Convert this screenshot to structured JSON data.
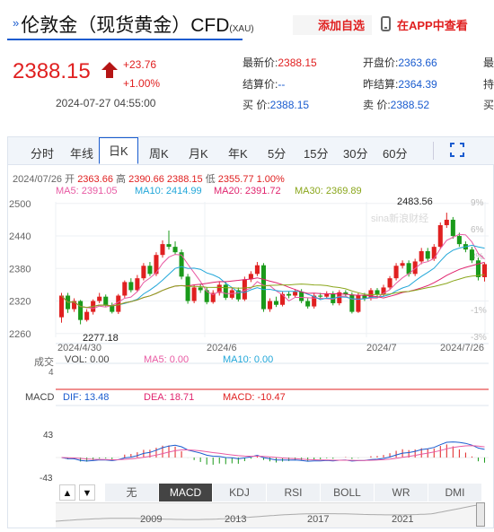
{
  "header": {
    "chevron": "»",
    "title": "伦敦金（现货黄金）CFD",
    "subtitle": "(XAU)",
    "add_watch": "添加自选",
    "app_view": "在APP中查看"
  },
  "quote": {
    "price": "2388.15",
    "change": "+23.76",
    "change_pct": "+1.00%",
    "time": "2024-07-27 04:55:00",
    "rows": [
      [
        {
          "label": "最新价:",
          "value": "2388.15",
          "color": "red"
        },
        {
          "label": "开盘价:",
          "value": "2363.66",
          "color": "blue"
        },
        {
          "label": "最",
          "value": "",
          "color": "blue"
        }
      ],
      [
        {
          "label": "结算价:",
          "value": "--",
          "color": "blue"
        },
        {
          "label": "昨结算:",
          "value": "2364.39",
          "color": "blue"
        },
        {
          "label": "持",
          "value": "",
          "color": "blue"
        }
      ],
      [
        {
          "label": "买  价:",
          "value": "2388.15",
          "color": "blue"
        },
        {
          "label": "卖  价:",
          "value": "2388.52",
          "color": "blue"
        },
        {
          "label": "买",
          "value": "",
          "color": "blue"
        }
      ]
    ]
  },
  "tabs": [
    "分时",
    "年线",
    "日K",
    "周K",
    "月K",
    "年K",
    "5分",
    "15分",
    "30分",
    "60分"
  ],
  "active_tab": "日K",
  "ohlc": {
    "date": "2024/07/26",
    "open_label": "开",
    "open": "2363.66",
    "high_label": "高",
    "high": "2390.66",
    "close": "2388.15",
    "low_label": "低",
    "low": "2355.77",
    "pct": "1.00%"
  },
  "ma_legend": [
    {
      "text": "MA5: 2391.05",
      "color": "#e85aa3"
    },
    {
      "text": "MA10: 2414.99",
      "color": "#22a7d9"
    },
    {
      "text": "MA20: 2391.72",
      "color": "#e0246e"
    },
    {
      "text": "MA30: 2369.89",
      "color": "#8aa61b"
    }
  ],
  "chart_data": {
    "type": "candlestick",
    "title": "",
    "y_ticks": [
      "2500",
      "2440",
      "2380",
      "2320",
      "2260"
    ],
    "y_range": [
      2253,
      2503
    ],
    "right_ticks": [
      "9%",
      "6%",
      "3%",
      "",
      "-1%",
      "-3%"
    ],
    "x_ticks": [
      "2024/4/30",
      "2024/6",
      "2024/7",
      "2024/7/26"
    ],
    "max_label": "2483.56",
    "min_label": "2277.18",
    "candles": [
      [
        2290,
        2330,
        2335,
        2280
      ],
      [
        2330,
        2305,
        2335,
        2298
      ],
      [
        2305,
        2320,
        2325,
        2300
      ],
      [
        2320,
        2285,
        2322,
        2277
      ],
      [
        2285,
        2300,
        2305,
        2282
      ],
      [
        2300,
        2320,
        2323,
        2295
      ],
      [
        2320,
        2328,
        2335,
        2316
      ],
      [
        2328,
        2312,
        2332,
        2310
      ],
      [
        2312,
        2300,
        2317,
        2297
      ],
      [
        2300,
        2330,
        2333,
        2296
      ],
      [
        2330,
        2355,
        2358,
        2326
      ],
      [
        2355,
        2340,
        2362,
        2336
      ],
      [
        2340,
        2362,
        2368,
        2337
      ],
      [
        2362,
        2385,
        2390,
        2358
      ],
      [
        2385,
        2370,
        2392,
        2366
      ],
      [
        2370,
        2405,
        2410,
        2366
      ],
      [
        2405,
        2425,
        2432,
        2400
      ],
      [
        2425,
        2420,
        2450,
        2415
      ],
      [
        2420,
        2410,
        2430,
        2405
      ],
      [
        2410,
        2365,
        2415,
        2360
      ],
      [
        2365,
        2320,
        2370,
        2315
      ],
      [
        2320,
        2345,
        2350,
        2316
      ],
      [
        2345,
        2340,
        2352,
        2335
      ],
      [
        2340,
        2318,
        2345,
        2314
      ],
      [
        2318,
        2335,
        2340,
        2315
      ],
      [
        2335,
        2350,
        2355,
        2330
      ],
      [
        2350,
        2326,
        2355,
        2322
      ],
      [
        2326,
        2340,
        2345,
        2323
      ],
      [
        2340,
        2323,
        2345,
        2319
      ],
      [
        2323,
        2360,
        2365,
        2320
      ],
      [
        2360,
        2370,
        2375,
        2355
      ],
      [
        2370,
        2386,
        2392,
        2366
      ],
      [
        2386,
        2305,
        2390,
        2300
      ],
      [
        2305,
        2320,
        2325,
        2300
      ],
      [
        2320,
        2313,
        2328,
        2309
      ],
      [
        2313,
        2333,
        2338,
        2310
      ],
      [
        2333,
        2330,
        2338,
        2325
      ],
      [
        2330,
        2337,
        2342,
        2326
      ],
      [
        2337,
        2320,
        2342,
        2316
      ],
      [
        2320,
        2310,
        2325,
        2306
      ],
      [
        2310,
        2330,
        2335,
        2306
      ],
      [
        2330,
        2328,
        2335,
        2323
      ],
      [
        2328,
        2333,
        2338,
        2324
      ],
      [
        2333,
        2316,
        2338,
        2312
      ],
      [
        2316,
        2336,
        2340,
        2312
      ],
      [
        2336,
        2332,
        2340,
        2328
      ],
      [
        2332,
        2300,
        2336,
        2297
      ],
      [
        2300,
        2330,
        2335,
        2298
      ],
      [
        2330,
        2325,
        2335,
        2320
      ],
      [
        2325,
        2340,
        2344,
        2321
      ],
      [
        2340,
        2332,
        2344,
        2328
      ],
      [
        2332,
        2345,
        2350,
        2328
      ],
      [
        2345,
        2362,
        2366,
        2341
      ],
      [
        2362,
        2385,
        2390,
        2358
      ],
      [
        2385,
        2390,
        2395,
        2380
      ],
      [
        2390,
        2370,
        2395,
        2365
      ],
      [
        2370,
        2393,
        2398,
        2366
      ],
      [
        2393,
        2412,
        2418,
        2388
      ],
      [
        2412,
        2398,
        2418,
        2394
      ],
      [
        2398,
        2420,
        2425,
        2394
      ],
      [
        2420,
        2460,
        2465,
        2416
      ],
      [
        2460,
        2470,
        2483,
        2455
      ],
      [
        2470,
        2440,
        2475,
        2435
      ],
      [
        2440,
        2425,
        2446,
        2420
      ],
      [
        2425,
        2415,
        2430,
        2410
      ],
      [
        2415,
        2395,
        2420,
        2390
      ],
      [
        2395,
        2364,
        2400,
        2358
      ],
      [
        2364,
        2388,
        2391,
        2356
      ]
    ],
    "volume_label": "4",
    "macd_axis": [
      "43",
      "-43"
    ]
  },
  "vol_legend": {
    "label": "成交",
    "vol": "VOL: 0.00",
    "ma5": "MA5: 0.00",
    "ma10": "MA10: 0.00"
  },
  "macd_legend": {
    "label": "MACD",
    "dif": "DIF: 13.48",
    "dea": "DEA: 18.71",
    "macd": "MACD: -10.47"
  },
  "watermark": "sina新浪财经",
  "indicators": [
    "无",
    "MACD",
    "KDJ",
    "RSI",
    "BOLL",
    "WR",
    "DMI"
  ],
  "active_indicator": "MACD",
  "arrow_up": "▲",
  "arrow_down": "▼",
  "nav_years": [
    "2009",
    "2013",
    "2017",
    "2021"
  ],
  "colors": {
    "up": "#e02020",
    "down": "#1a9a1a",
    "accent": "#1a5ccf"
  }
}
